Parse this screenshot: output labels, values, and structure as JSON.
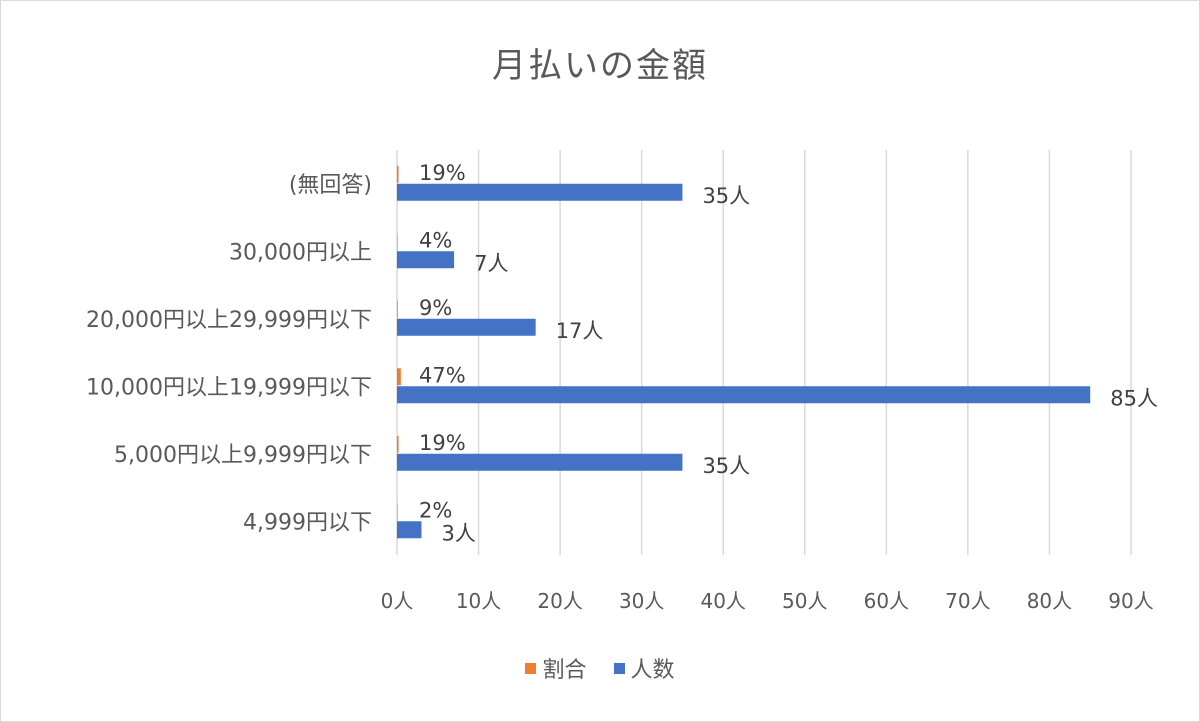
{
  "chart_data": {
    "type": "bar",
    "orientation": "horizontal",
    "title": "月払いの金額",
    "categories": [
      "(無回答)",
      "30,000円以上",
      "20,000円以上29,999円以下",
      "10,000円以上19,999円以下",
      "5,000円以上9,999円以下",
      "4,999円以下"
    ],
    "series": [
      {
        "name": "割合",
        "color": "#ED7D31",
        "values": [
          0.19,
          0.04,
          0.09,
          0.47,
          0.19,
          0.02
        ],
        "labels": [
          "19%",
          "4%",
          "9%",
          "47%",
          "19%",
          "2%"
        ]
      },
      {
        "name": "人数",
        "color": "#4472C4",
        "values": [
          35,
          7,
          17,
          85,
          35,
          3
        ],
        "labels": [
          "35人",
          "7人",
          "17人",
          "85人",
          "35人",
          "3人"
        ]
      }
    ],
    "xlim": [
      0,
      90
    ],
    "xticks": [
      0,
      10,
      20,
      30,
      40,
      50,
      60,
      70,
      80,
      90
    ],
    "xtick_labels": [
      "0人",
      "10人",
      "20人",
      "30人",
      "40人",
      "50人",
      "60人",
      "70人",
      "80人",
      "90人"
    ],
    "grid": true,
    "legend_position": "bottom"
  }
}
